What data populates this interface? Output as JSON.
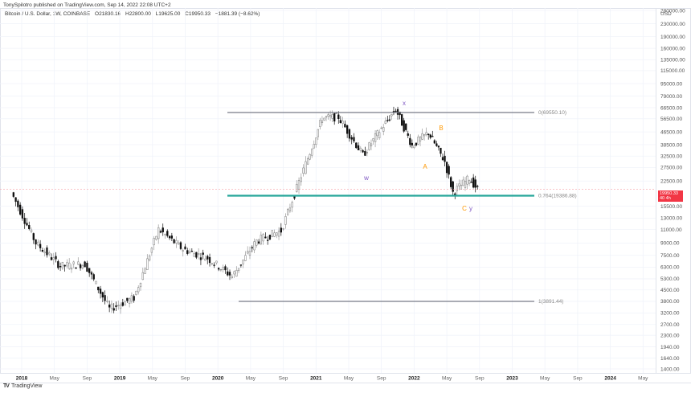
{
  "header": {
    "published": "TonySpilotro published on TradingView.com, Sep 14, 2022 22:08 UTC+2"
  },
  "legend": {
    "symbol": "Bitcoin / U.S. Dollar, 1W, COINBASE",
    "open": "O21830.16",
    "high": "H22800.00",
    "low": "L19625.00",
    "close": "C19950.33",
    "change": "−1881.39 (−8.62%)"
  },
  "price_axis": {
    "currency": "USD",
    "ticks": [
      "280000.00",
      "230000.00",
      "190000.00",
      "160000.00",
      "135000.00",
      "115000.00",
      "95000.00",
      "79000.00",
      "66500.00",
      "56500.00",
      "46500.00",
      "38500.00",
      "32500.00",
      "27500.00",
      "22500.00",
      "15500.00",
      "13000.00",
      "11000.00",
      "9000.00",
      "7500.00",
      "6300.00",
      "5300.00",
      "4500.00",
      "3800.00",
      "3200.00",
      "2700.00",
      "2300.00",
      "1940.00",
      "1640.00",
      "1400.00"
    ],
    "current_price": "19950.33",
    "countdown": "40 4h"
  },
  "time_axis": {
    "ticks": [
      {
        "label": "2018",
        "year": true
      },
      {
        "label": "May",
        "year": false
      },
      {
        "label": "Sep",
        "year": false
      },
      {
        "label": "2019",
        "year": true
      },
      {
        "label": "May",
        "year": false
      },
      {
        "label": "Sep",
        "year": false
      },
      {
        "label": "2020",
        "year": true
      },
      {
        "label": "May",
        "year": false
      },
      {
        "label": "Sep",
        "year": false
      },
      {
        "label": "2021",
        "year": true
      },
      {
        "label": "May",
        "year": false
      },
      {
        "label": "Sep",
        "year": false
      },
      {
        "label": "2022",
        "year": true
      },
      {
        "label": "May",
        "year": false
      },
      {
        "label": "Sep",
        "year": false
      },
      {
        "label": "2023",
        "year": true
      },
      {
        "label": "May",
        "year": false
      },
      {
        "label": "Sep",
        "year": false
      },
      {
        "label": "2024",
        "year": true
      },
      {
        "label": "May",
        "year": false
      }
    ]
  },
  "fib_levels": [
    {
      "label": "0(69550.10)",
      "color": "#787b86"
    },
    {
      "label": "0.764(19386.88)",
      "color": "#26a69a"
    },
    {
      "label": "1(3891.44)",
      "color": "#787b86"
    }
  ],
  "wave_labels": [
    {
      "text": "x",
      "color": "#7e57c2"
    },
    {
      "text": "w",
      "color": "#7e57c2"
    },
    {
      "text": "A",
      "color": "#ff9800"
    },
    {
      "text": "B",
      "color": "#ff9800"
    },
    {
      "text": "C",
      "color": "#ff9800"
    },
    {
      "text": "y",
      "color": "#7e57c2"
    }
  ],
  "branding": {
    "logo_text": "TradingView"
  },
  "chart_data": {
    "type": "line",
    "title": "Bitcoin / U.S. Dollar, 1W, COINBASE",
    "xlabel": "",
    "ylabel": "USD",
    "yscale": "log",
    "ylim": [
      1400,
      280000
    ],
    "grid": true,
    "x": [
      "2017-12",
      "2018-03",
      "2018-06",
      "2018-09",
      "2018-12",
      "2019-03",
      "2019-06",
      "2019-09",
      "2019-12",
      "2020-03",
      "2020-06",
      "2020-09",
      "2020-12",
      "2021-02",
      "2021-04",
      "2021-07",
      "2021-09",
      "2021-11",
      "2022-01",
      "2022-03",
      "2022-05",
      "2022-06",
      "2022-08",
      "2022-09"
    ],
    "series": [
      {
        "name": "BTCUSD weekly close (approx)",
        "values": [
          19000,
          9000,
          6400,
          6600,
          3400,
          4000,
          11000,
          8200,
          7200,
          5500,
          9300,
          10800,
          29000,
          57000,
          58000,
          33000,
          47000,
          65000,
          38000,
          46000,
          30000,
          19000,
          23500,
          19950
        ]
      }
    ],
    "annotations": [
      {
        "type": "fib",
        "level": 0,
        "price": 69550.1,
        "label": "0(69550.10)"
      },
      {
        "type": "fib",
        "level": 0.764,
        "price": 19386.88,
        "label": "0.764(19386.88)"
      },
      {
        "type": "fib",
        "level": 1,
        "price": 3891.44,
        "label": "1(3891.44)"
      },
      {
        "type": "wave",
        "label": "w",
        "x": "2021-07"
      },
      {
        "type": "wave",
        "label": "x",
        "x": "2021-11"
      },
      {
        "type": "wave",
        "label": "A",
        "x": "2022-01"
      },
      {
        "type": "wave",
        "label": "B",
        "x": "2022-03"
      },
      {
        "type": "wave",
        "label": "C",
        "x": "2022-06"
      },
      {
        "type": "wave",
        "label": "y",
        "x": "2022-06"
      }
    ],
    "last": {
      "open": 21830.16,
      "high": 22800.0,
      "low": 19625.0,
      "close": 19950.33,
      "change": -1881.39,
      "change_pct": -8.62
    }
  }
}
